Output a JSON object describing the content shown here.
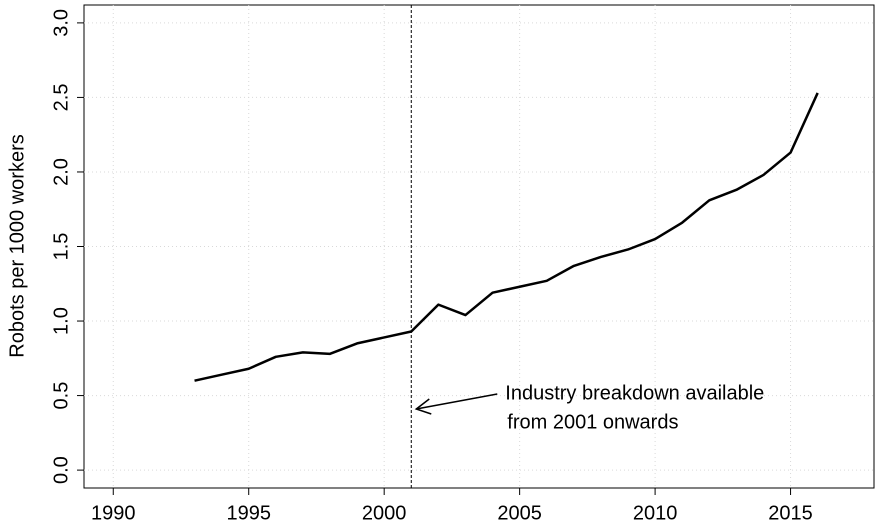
{
  "chart_data": {
    "type": "line",
    "y_label": "Robots per 1000 workers",
    "x": [
      1993,
      1994,
      1995,
      1996,
      1997,
      1998,
      1999,
      2000,
      2001,
      2002,
      2003,
      2004,
      2005,
      2006,
      2007,
      2008,
      2009,
      2010,
      2011,
      2012,
      2013,
      2014,
      2015,
      2016
    ],
    "series": [
      {
        "color": "#000000",
        "values": [
          0.6,
          0.64,
          0.68,
          0.76,
          0.79,
          0.78,
          0.85,
          0.89,
          0.93,
          1.11,
          1.04,
          1.19,
          1.23,
          1.27,
          1.37,
          1.43,
          1.48,
          1.55,
          1.66,
          1.81,
          1.88,
          1.98,
          2.13,
          2.53
        ]
      }
    ],
    "xlim": [
      1988.92,
      2018.08
    ],
    "xticks": [
      1990,
      1995,
      2000,
      2005,
      2010,
      2015
    ],
    "ylim": [
      -0.12,
      3.12
    ],
    "yticks": [
      {
        "value": 0,
        "label": "0.0"
      },
      0.5,
      {
        "value": 1,
        "label": "1.0"
      },
      1.5,
      {
        "value": 2,
        "label": "2.0"
      },
      2.5,
      {
        "value": 3,
        "label": "3.0"
      }
    ],
    "grid": true,
    "vline": 2001,
    "annotation": [
      "Industry breakdown available",
      "from 2001 onwards"
    ]
  }
}
